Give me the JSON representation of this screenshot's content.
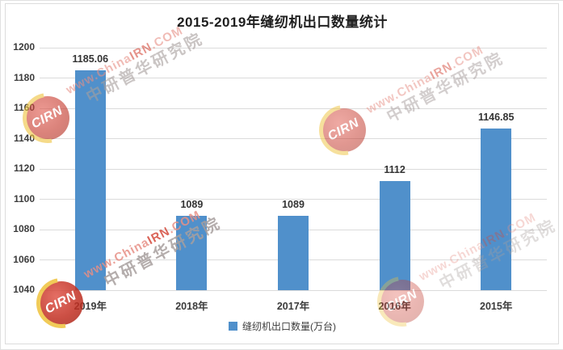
{
  "header": {
    "title": "2015-2019年缝纫机出口数量统计"
  },
  "chart_data": {
    "type": "bar",
    "title": "2015-2019年缝纫机出口数量统计",
    "categories": [
      "2019年",
      "2018年",
      "2017年",
      "2016年",
      "2015年"
    ],
    "values": [
      1185.06,
      1089,
      1089,
      1112,
      1146.85
    ],
    "value_labels": [
      "1185.06",
      "1089",
      "1089",
      "1112",
      "1146.85"
    ],
    "series_name": "缝纫机出口数量(万台)",
    "xlabel": "",
    "ylabel": "",
    "ylim": [
      1040,
      1200
    ],
    "ytick_step": 20,
    "yticks": [
      1200,
      1180,
      1160,
      1140,
      1120,
      1100,
      1080,
      1060,
      1040
    ],
    "grid": true,
    "legend_position": "bottom"
  },
  "legend": {
    "label": "缝纫机出口数量(万台)"
  },
  "watermark": {
    "url_prefix": "www.China",
    "url_mid": "IRN",
    "url_suffix": ".COM",
    "cn_text": "中研普华研究院",
    "logo_text": "CIRN"
  },
  "colors": {
    "bar": "#5090CB",
    "grid": "#DBDBDB",
    "label": "#3B3B3B",
    "legend_marker": "#5090CB",
    "watermark_red": "#D44A3C",
    "watermark_pink": "#E78F85",
    "watermark_gray": "#A89F9E",
    "logo_red": "#C33124",
    "logo_ring": "#EFC23C"
  }
}
